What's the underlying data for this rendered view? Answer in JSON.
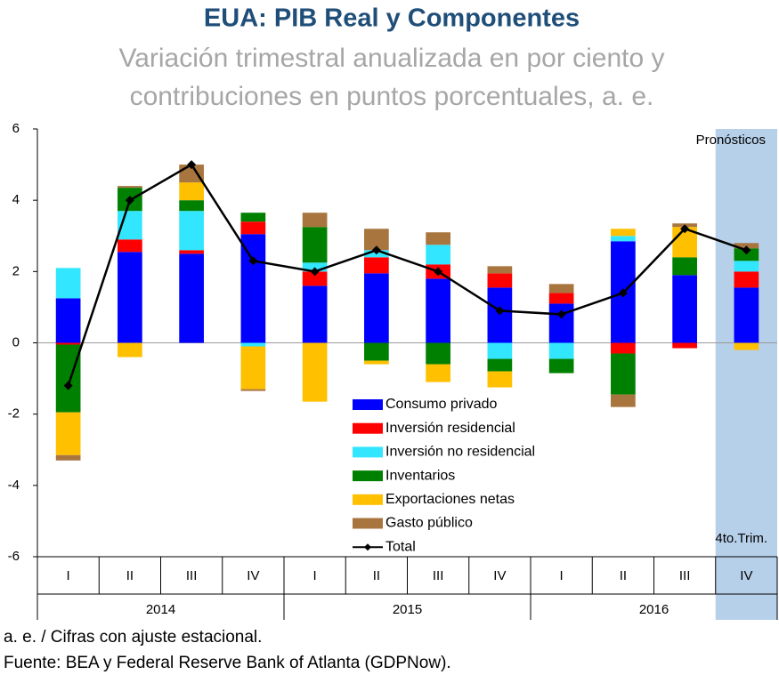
{
  "chart_data": {
    "type": "stacked_bar_line",
    "title": "EUA: PIB Real y Componentes",
    "subtitle": [
      "Variación trimestral anualizada en por ciento y",
      "contribuciones en puntos porcentuales, a. e."
    ],
    "categories": [
      "I",
      "II",
      "III",
      "IV",
      "I",
      "II",
      "III",
      "IV",
      "I",
      "II",
      "III",
      "IV"
    ],
    "year_groups": [
      "2014",
      "2015",
      "2016"
    ],
    "series": [
      {
        "name": "Consumo privado",
        "color": "#0000ff",
        "values": [
          1.25,
          2.55,
          2.5,
          3.05,
          1.6,
          1.95,
          1.8,
          1.55,
          1.1,
          2.85,
          1.9,
          1.55
        ]
      },
      {
        "name": "Inversión residencial",
        "color": "#ff0000",
        "values": [
          -0.05,
          0.35,
          0.1,
          0.35,
          0.4,
          0.45,
          0.4,
          0.4,
          0.3,
          -0.3,
          -0.15,
          0.45
        ]
      },
      {
        "name": "Inversión no residencial",
        "color": "#33e6ff",
        "values": [
          0.85,
          0.8,
          1.1,
          -0.1,
          0.25,
          0.2,
          0.55,
          -0.45,
          -0.45,
          0.15,
          0,
          0.3
        ]
      },
      {
        "name": "Inventarios",
        "color": "#008000",
        "values": [
          -1.9,
          0.65,
          0.3,
          0.25,
          1.0,
          -0.5,
          -0.6,
          -0.35,
          -0.4,
          -1.15,
          0.5,
          0.35
        ]
      },
      {
        "name": "Exportaciones netas",
        "color": "#ffc000",
        "values": [
          -1.2,
          -0.4,
          0.5,
          -1.2,
          -1.65,
          -0.1,
          -0.5,
          -0.45,
          0,
          0.2,
          0.85,
          -0.2
        ]
      },
      {
        "name": "Gasto público",
        "color": "#a8753e",
        "values": [
          -0.15,
          0.05,
          0.5,
          -0.05,
          0.4,
          0.6,
          0.35,
          0.2,
          0.25,
          -0.35,
          0.1,
          0.15
        ]
      }
    ],
    "line_series": {
      "name": "Total",
      "color": "#000000",
      "values": [
        -1.2,
        4.0,
        5.0,
        2.3,
        2.0,
        2.6,
        2.0,
        0.9,
        0.8,
        1.4,
        3.2,
        2.6
      ]
    },
    "ylim": [
      -6,
      6
    ],
    "yticks": [
      -6,
      -4,
      -2,
      0,
      2,
      4,
      6
    ],
    "grid": false,
    "annotations": [
      "Pronósticos",
      "4to.Trim."
    ]
  },
  "notes": [
    "a. e. / Cifras con ajuste estacional.",
    "Fuente: BEA y Federal Reserve Bank of Atlanta (GDPNow)."
  ]
}
